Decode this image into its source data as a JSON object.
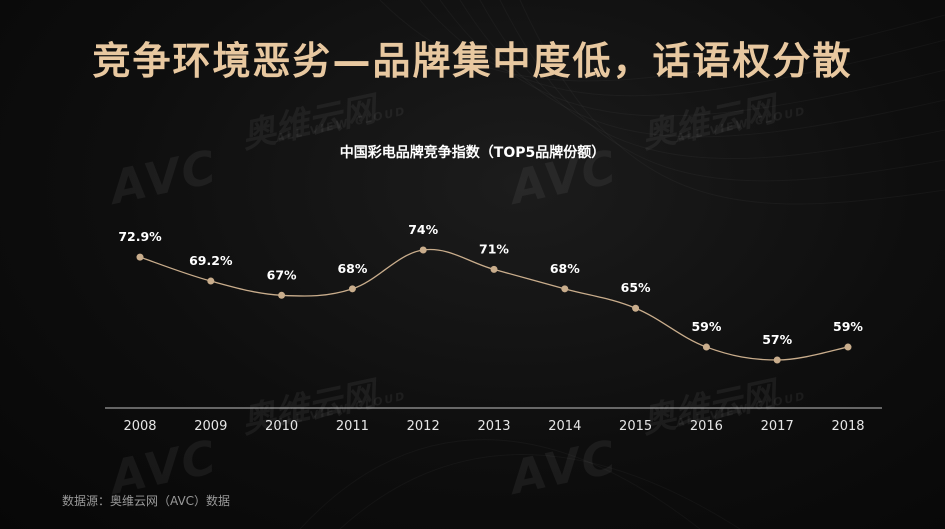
{
  "title": "竞争环境恶劣—品牌集中度低，话语权分散",
  "watermark": {
    "logo": "AVC",
    "brand_cn": "奥维云网",
    "brand_en": "ALL VIEW CLOUD"
  },
  "source": "数据源：奥维云网（AVC）数据",
  "colors": {
    "title": "#e8c8a0",
    "line": "#c9ad8c",
    "marker": "#c9ad8c",
    "axis": "#bfbfbf",
    "label": "#ffffff"
  },
  "chart_data": {
    "type": "line",
    "title": "中国彩电品牌竞争指数（TOP5品牌份额）",
    "categories": [
      "2008",
      "2009",
      "2010",
      "2011",
      "2012",
      "2013",
      "2014",
      "2015",
      "2016",
      "2017",
      "2018"
    ],
    "values": [
      72.9,
      69.2,
      67,
      68,
      74,
      71,
      68,
      65,
      59,
      57,
      59
    ],
    "data_labels": [
      "72.9%",
      "69.2%",
      "67%",
      "68%",
      "74%",
      "71%",
      "68%",
      "65%",
      "59%",
      "57%",
      "59%"
    ],
    "xlabel": "",
    "ylabel": "",
    "grid": false,
    "legend": "none"
  }
}
